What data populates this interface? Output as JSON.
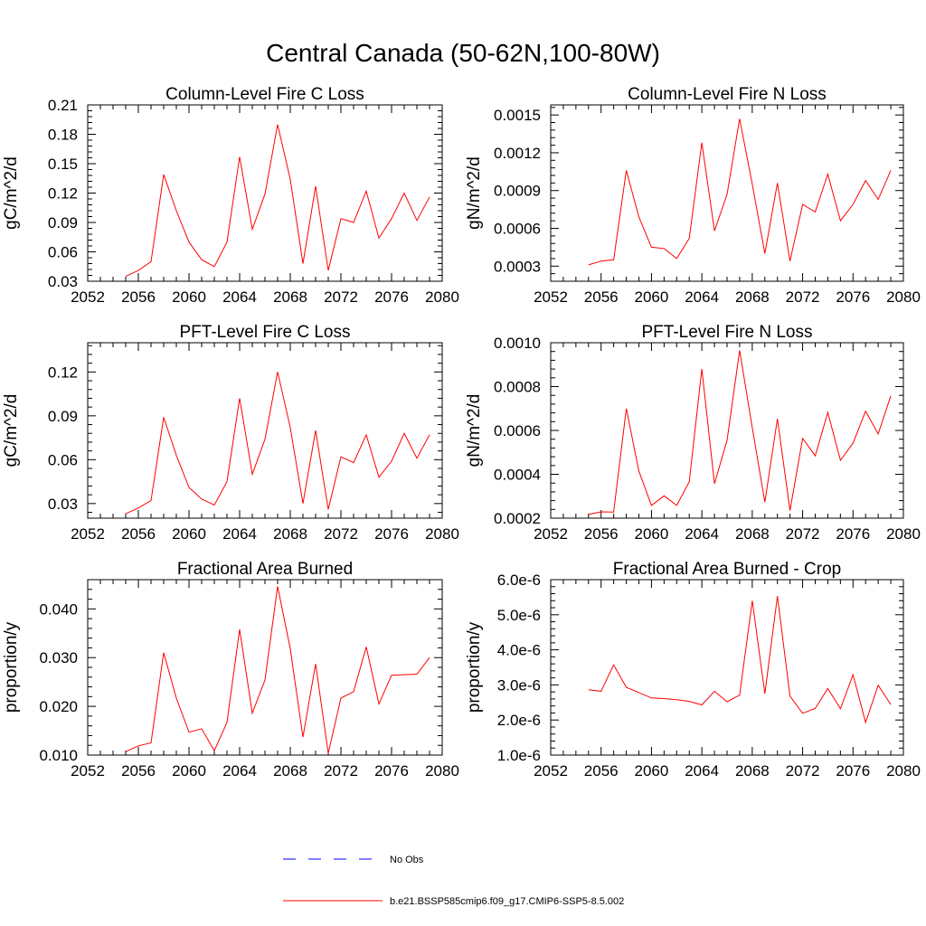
{
  "figure": {
    "title": "Central Canada (50-62N,100-80W)"
  },
  "chart_data": [
    {
      "type": "line",
      "title": "Column-Level Fire C Loss",
      "xlabel": "",
      "ylabel": "gC/m^2/d",
      "xlim": [
        2052,
        2080
      ],
      "ylim": [
        0.03,
        0.21
      ],
      "xticks": [
        2052,
        2056,
        2060,
        2064,
        2068,
        2072,
        2076,
        2080
      ],
      "yticks": [
        "0.03",
        "0.06",
        "0.09",
        "0.12",
        "0.15",
        "0.18",
        "0.21"
      ],
      "x": [
        2055,
        2056,
        2057,
        2058,
        2059,
        2060,
        2061,
        2062,
        2063,
        2064,
        2065,
        2066,
        2067,
        2068,
        2069,
        2070,
        2071,
        2072,
        2073,
        2074,
        2075,
        2076,
        2077,
        2078,
        2079
      ],
      "series": [
        {
          "color": "#ff0000",
          "values": [
            0.035,
            0.041,
            0.05,
            0.139,
            0.102,
            0.07,
            0.052,
            0.045,
            0.07,
            0.157,
            0.083,
            0.119,
            0.19,
            0.134,
            0.048,
            0.127,
            0.041,
            0.094,
            0.09,
            0.122,
            0.074,
            0.094,
            0.12,
            0.092,
            0.116
          ]
        }
      ]
    },
    {
      "type": "line",
      "title": "Column-Level Fire N Loss",
      "xlabel": "",
      "ylabel": "gN/m^2/d",
      "xlim": [
        2052,
        2080
      ],
      "ylim": [
        0.00018,
        0.00158
      ],
      "xticks": [
        2052,
        2056,
        2060,
        2064,
        2068,
        2072,
        2076,
        2080
      ],
      "yticks": [
        "0.0003",
        "0.0006",
        "0.0009",
        "0.0012",
        "0.0015"
      ],
      "x": [
        2055,
        2056,
        2057,
        2058,
        2059,
        2060,
        2061,
        2062,
        2063,
        2064,
        2065,
        2066,
        2067,
        2068,
        2069,
        2070,
        2071,
        2072,
        2073,
        2074,
        2075,
        2076,
        2077,
        2078,
        2079
      ],
      "series": [
        {
          "color": "#ff0000",
          "values": [
            0.00031,
            0.00034,
            0.00035,
            0.00106,
            0.00069,
            0.00045,
            0.00044,
            0.00036,
            0.00052,
            0.00128,
            0.00058,
            0.00087,
            0.00147,
            0.00095,
            0.0004,
            0.00096,
            0.00034,
            0.00079,
            0.00073,
            0.00103,
            0.00066,
            0.00079,
            0.00098,
            0.00083,
            0.00106
          ]
        }
      ]
    },
    {
      "type": "line",
      "title": "PFT-Level Fire C Loss",
      "xlabel": "",
      "ylabel": "gC/m^2/d",
      "xlim": [
        2052,
        2080
      ],
      "ylim": [
        0.02,
        0.14
      ],
      "xticks": [
        2052,
        2056,
        2060,
        2064,
        2068,
        2072,
        2076,
        2080
      ],
      "yticks": [
        "0.03",
        "0.06",
        "0.09",
        "0.12"
      ],
      "x": [
        2055,
        2056,
        2057,
        2058,
        2059,
        2060,
        2061,
        2062,
        2063,
        2064,
        2065,
        2066,
        2067,
        2068,
        2069,
        2070,
        2071,
        2072,
        2073,
        2074,
        2075,
        2076,
        2077,
        2078,
        2079
      ],
      "series": [
        {
          "color": "#ff0000",
          "values": [
            0.023,
            0.027,
            0.032,
            0.089,
            0.063,
            0.041,
            0.033,
            0.029,
            0.045,
            0.102,
            0.05,
            0.074,
            0.12,
            0.082,
            0.03,
            0.08,
            0.026,
            0.062,
            0.058,
            0.077,
            0.048,
            0.059,
            0.078,
            0.061,
            0.077
          ]
        }
      ]
    },
    {
      "type": "line",
      "title": "PFT-Level Fire N Loss",
      "xlabel": "",
      "ylabel": "gN/m^2/d",
      "xlim": [
        2052,
        2080
      ],
      "ylim": [
        0.0002,
        0.001
      ],
      "xticks": [
        2052,
        2056,
        2060,
        2064,
        2068,
        2072,
        2076,
        2080
      ],
      "yticks": [
        "0.0002",
        "0.0004",
        "0.0006",
        "0.0008",
        "0.0010"
      ],
      "x": [
        2055,
        2056,
        2057,
        2058,
        2059,
        2060,
        2061,
        2062,
        2063,
        2064,
        2065,
        2066,
        2067,
        2068,
        2069,
        2070,
        2071,
        2072,
        2073,
        2074,
        2075,
        2076,
        2077,
        2078,
        2079
      ],
      "series": [
        {
          "color": "#ff0000",
          "values": [
            0.000217,
            0.000229,
            0.000228,
            0.0007,
            0.000414,
            0.000258,
            0.000302,
            0.000258,
            0.000366,
            0.00088,
            0.000357,
            0.000555,
            0.000965,
            0.000612,
            0.000273,
            0.000653,
            0.000235,
            0.000564,
            0.000484,
            0.000682,
            0.000464,
            0.000542,
            0.000688,
            0.000584,
            0.000758
          ]
        }
      ]
    },
    {
      "type": "line",
      "title": "Fractional Area Burned",
      "xlabel": "",
      "ylabel": "proportion/y",
      "xlim": [
        2052,
        2080
      ],
      "ylim": [
        0.01,
        0.046
      ],
      "xticks": [
        2052,
        2056,
        2060,
        2064,
        2068,
        2072,
        2076,
        2080
      ],
      "yticks": [
        "0.010",
        "0.020",
        "0.030",
        "0.040"
      ],
      "x": [
        2055,
        2056,
        2057,
        2058,
        2059,
        2060,
        2061,
        2062,
        2063,
        2064,
        2065,
        2066,
        2067,
        2068,
        2069,
        2070,
        2071,
        2072,
        2073,
        2074,
        2075,
        2076,
        2077,
        2078,
        2079
      ],
      "series": [
        {
          "color": "#ff0000",
          "values": [
            0.0107,
            0.0119,
            0.0125,
            0.031,
            0.0217,
            0.0147,
            0.0154,
            0.0109,
            0.0167,
            0.0358,
            0.0186,
            0.0254,
            0.0446,
            0.0318,
            0.0137,
            0.0287,
            0.0104,
            0.0217,
            0.023,
            0.0322,
            0.0205,
            0.0264,
            0.0265,
            0.0266,
            0.03
          ]
        }
      ]
    },
    {
      "type": "line",
      "title": "Fractional Area Burned - Crop",
      "xlabel": "",
      "ylabel": "proportion/y",
      "xlim": [
        2052,
        2080
      ],
      "ylim": [
        1e-06,
        6e-06
      ],
      "xticks": [
        2052,
        2056,
        2060,
        2064,
        2068,
        2072,
        2076,
        2080
      ],
      "yticks": [
        "1.0e-6",
        "2.0e-6",
        "3.0e-6",
        "4.0e-6",
        "5.0e-6",
        "6.0e-6"
      ],
      "x": [
        2055,
        2056,
        2057,
        2058,
        2059,
        2060,
        2061,
        2062,
        2063,
        2064,
        2065,
        2066,
        2067,
        2068,
        2069,
        2070,
        2071,
        2072,
        2073,
        2074,
        2075,
        2076,
        2077,
        2078,
        2079
      ],
      "series": [
        {
          "color": "#ff0000",
          "values": [
            2.86e-06,
            2.82e-06,
            3.57e-06,
            2.93e-06,
            2.78e-06,
            2.63e-06,
            2.61e-06,
            2.58e-06,
            2.53e-06,
            2.43e-06,
            2.82e-06,
            2.52e-06,
            2.71e-06,
            5.4e-06,
            2.75e-06,
            5.53e-06,
            2.68e-06,
            2.19e-06,
            2.33e-06,
            2.9e-06,
            2.32e-06,
            3.29e-06,
            1.93e-06,
            2.99e-06,
            2.44e-06
          ]
        }
      ]
    }
  ],
  "legend": {
    "placement": "bottom-center",
    "items": [
      {
        "label": "No Obs",
        "color": "#0000ff",
        "style": "dashed"
      },
      {
        "label": "b.e21.BSSP585cmip6.f09_g17.CMIP6-SSP5-8.5.002",
        "color": "#ff0000",
        "style": "solid"
      }
    ]
  }
}
